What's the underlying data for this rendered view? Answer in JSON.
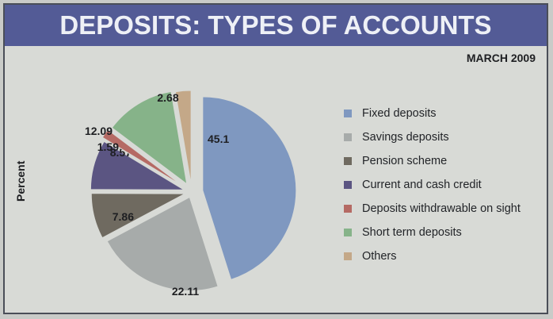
{
  "chart_data": {
    "type": "pie",
    "title": "DEPOSITS: TYPES OF ACCOUNTS",
    "subtitle": "MARCH 2009",
    "ylabel": "Percent",
    "legend_position": "right",
    "slices": [
      {
        "label": "Fixed deposits",
        "value": 45.1,
        "display": "45.1",
        "color": "#7f98c0"
      },
      {
        "label": "Savings deposits",
        "value": 22.11,
        "display": "22.11",
        "color": "#a7abaa"
      },
      {
        "label": "Pension scheme",
        "value": 7.86,
        "display": "7.86",
        "color": "#6f6a60"
      },
      {
        "label": "Current and cash credit",
        "value": 8.57,
        "display": "8.57",
        "color": "#5b5582"
      },
      {
        "label": "Deposits withdrawable on sight",
        "value": 1.59,
        "display": "1.59",
        "color": "#b56a64"
      },
      {
        "label": "Short term deposits",
        "value": 12.09,
        "display": "12.09",
        "color": "#86b389"
      },
      {
        "label": "Others",
        "value": 2.68,
        "display": "2.68",
        "color": "#c4a888"
      }
    ]
  }
}
